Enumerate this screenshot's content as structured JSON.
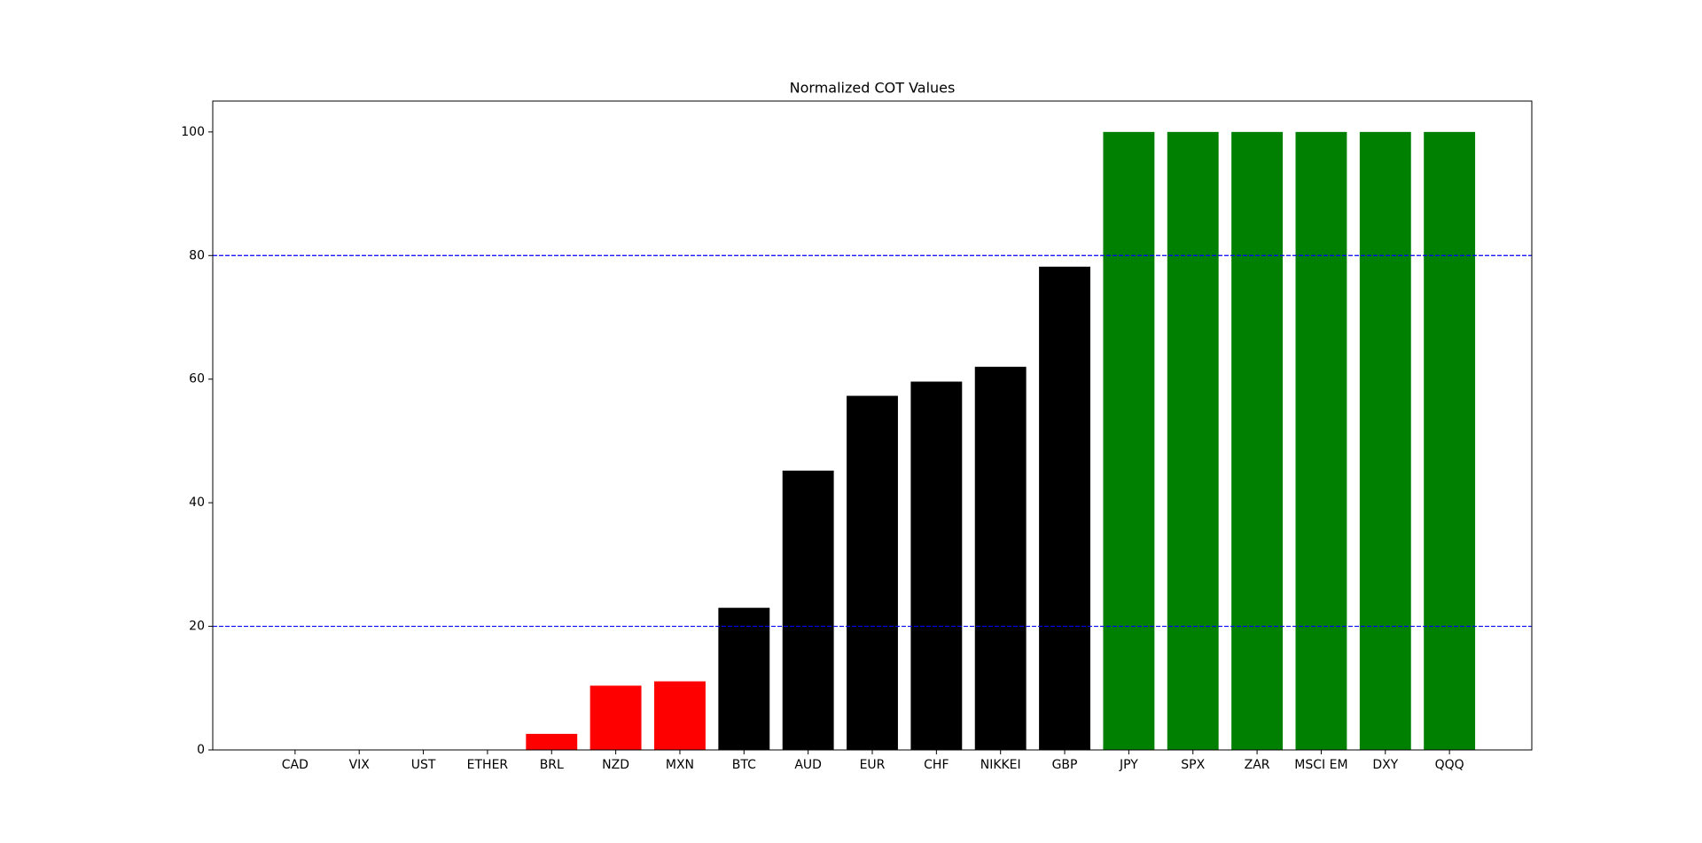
{
  "chart_data": {
    "type": "bar",
    "title": "Normalized COT Values",
    "categories": [
      "CAD",
      "VIX",
      "UST",
      "ETHER",
      "BRL",
      "NZD",
      "MXN",
      "BTC",
      "AUD",
      "EUR",
      "CHF",
      "NIKKEI",
      "GBP",
      "JPY",
      "SPX",
      "ZAR",
      "MSCI EM",
      "DXY",
      "QQQ"
    ],
    "values": [
      0,
      0,
      0,
      0,
      2.6,
      10.4,
      11.1,
      23.0,
      45.2,
      57.3,
      59.6,
      62.0,
      78.2,
      100,
      100,
      100,
      100,
      100,
      100
    ],
    "colors": [
      "#ff0000",
      "#ff0000",
      "#ff0000",
      "#ff0000",
      "#ff0000",
      "#ff0000",
      "#ff0000",
      "#000000",
      "#000000",
      "#000000",
      "#000000",
      "#000000",
      "#000000",
      "#008000",
      "#008000",
      "#008000",
      "#008000",
      "#008000",
      "#008000"
    ],
    "ylim": [
      0,
      105
    ],
    "yticks": [
      0,
      20,
      40,
      60,
      80,
      100
    ],
    "hlines": [
      20,
      80
    ],
    "hline_color": "#0000ff"
  }
}
